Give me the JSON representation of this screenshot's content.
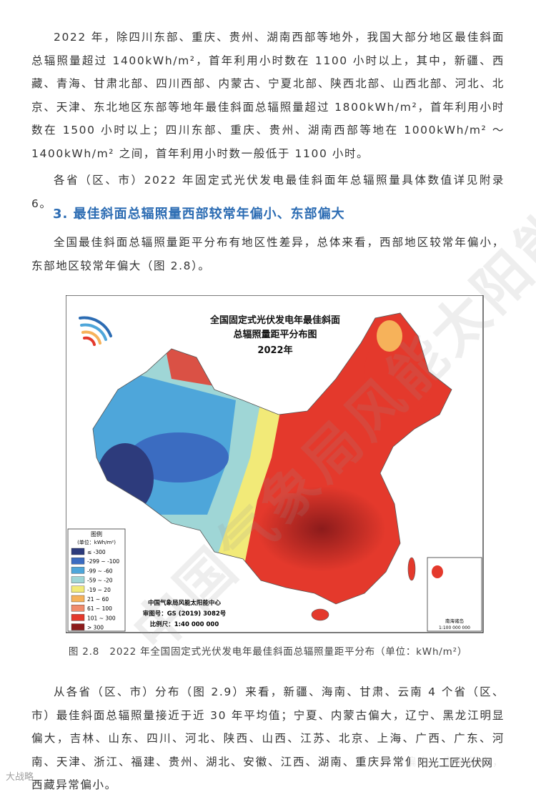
{
  "paragraphs": [
    "2022 年，除四川东部、重庆、贵州、湖南西部等地外，我国大部分地区最佳斜面总辐照量超过 1400kWh/m²，首年利用小时数在 1100 小时以上，其中，新疆、西藏、青海、甘肃北部、四川西部、内蒙古、宁夏北部、陕西北部、山西北部、河北、北京、天津、东北地区东部等地年最佳斜面总辐照量超过 1800kWh/m²，首年利用小时数在 1500 小时以上；四川东部、重庆、贵州、湖南西部等地在 1000kWh/m² ～ 1400kWh/m² 之间，首年利用小时数一般低于 1100 小时。",
    "各省（区、市）2022 年固定式光伏发电最佳斜面年总辐照量具体数值详见附录 6。"
  ],
  "heading": "3. 最佳斜面总辐照量西部较常年偏小、东部偏大",
  "paragraph_3": "全国最佳斜面总辐照量距平分布有地区性差异，总体来看，西部地区较常年偏小，东部地区较常年偏大（图 2.8）。",
  "map": {
    "title": [
      "全国固定式光伏发电年最佳斜面",
      "总辐照量距平分布图",
      "2022年"
    ],
    "legend_title": "图例",
    "legend_unit": "(单位：kWh/m²)",
    "legend": [
      {
        "label": "≤ -300",
        "color": "#2d3b7c"
      },
      {
        "label": "-299 ~ -100",
        "color": "#3b6cc1"
      },
      {
        "label": "-99 ~ -60",
        "color": "#4ea6da"
      },
      {
        "label": "-59 ~ -20",
        "color": "#9fd6d6"
      },
      {
        "label": "-19 ~ 20",
        "color": "#f2ea78"
      },
      {
        "label": "21 ~ 60",
        "color": "#f6b25a"
      },
      {
        "label": "61 ~ 100",
        "color": "#f08b6c"
      },
      {
        "label": "101 ~ 300",
        "color": "#e4392c"
      },
      {
        "label": "> 300",
        "color": "#8c1b1b"
      }
    ],
    "credits": [
      "中国气象局风能太阳能中心",
      "审图号：GS (2019) 3082号",
      "比例尺：1:40 000 000"
    ],
    "inset": [
      "南海诸岛",
      "1:100 000 000"
    ]
  },
  "caption": "图 2.8　2022 年全国固定式光伏发电年最佳斜面总辐照量距平分布（单位：kWh/m²）",
  "paragraph_4": "从各省（区、市）分布（图 2.9）来看，新疆、海南、甘肃、云南 4 个省（区、市）最佳斜面总辐照量接近于近 30 年平均值；宁夏、内蒙古偏大，辽宁、黑龙江明显偏大，吉林、山东、四川、河北、陕西、山西、江苏、北京、上海、广西、广东、河南、天津、浙江、福建、贵州、湖北、安徽、江西、湖南、重庆异常偏大；青海偏小，西藏异常偏小。",
  "watermark": "中国气象局风能太阳能中心",
  "footer_left": "大战略",
  "footer_right": "阳光工匠光伏网"
}
